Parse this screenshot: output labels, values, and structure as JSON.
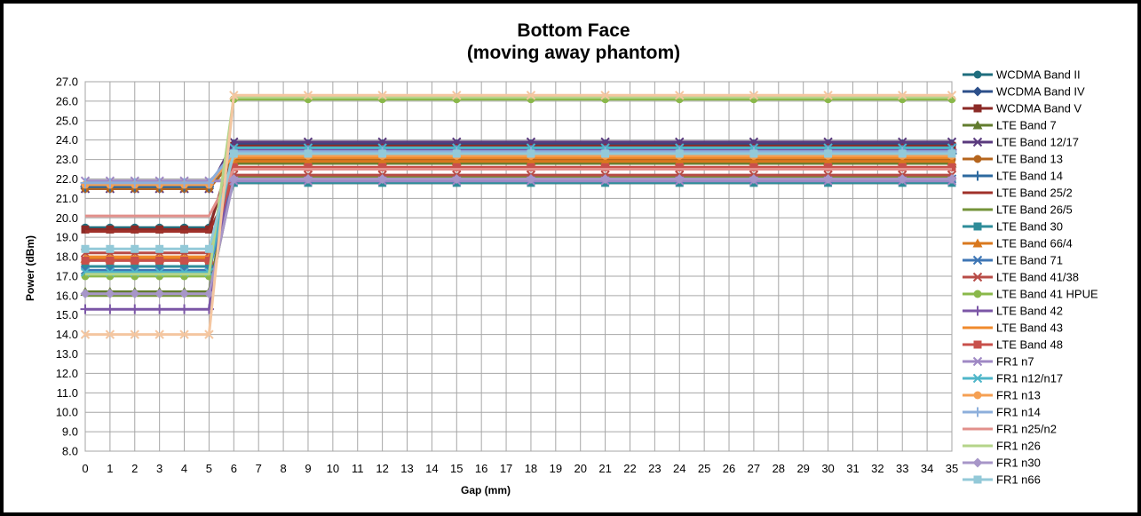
{
  "chart_data": {
    "type": "line",
    "title": "Bottom Face",
    "subtitle": "(moving away phantom)",
    "xlabel": "Gap (mm)",
    "ylabel": "Power (dBm)",
    "ylim": [
      8.0,
      27.0
    ],
    "xlim": [
      0,
      35
    ],
    "x_ticks": [
      "0",
      "1",
      "2",
      "3",
      "4",
      "5",
      "6",
      "7",
      "8",
      "9",
      "10",
      "11",
      "12",
      "13",
      "14",
      "15",
      "16",
      "17",
      "18",
      "19",
      "20",
      "21",
      "22",
      "23",
      "24",
      "25",
      "26",
      "27",
      "28",
      "29",
      "30",
      "31",
      "32",
      "33",
      "34",
      "35"
    ],
    "y_ticks": [
      "8.0",
      "9.0",
      "10.0",
      "11.0",
      "12.0",
      "13.0",
      "14.0",
      "15.0",
      "16.0",
      "17.0",
      "18.0",
      "19.0",
      "20.0",
      "21.0",
      "22.0",
      "23.0",
      "24.0",
      "25.0",
      "26.0",
      "27.0"
    ],
    "grid": true,
    "legend_position": "right",
    "x": [
      0,
      1,
      2,
      3,
      4,
      5,
      6,
      9,
      12,
      15,
      18,
      21,
      24,
      27,
      30,
      33,
      35
    ],
    "series": [
      {
        "name": "WCDMA Band II",
        "color": "#1F6E7E",
        "marker": "circle",
        "near": 19.5,
        "far": 23.4
      },
      {
        "name": "WCDMA Band IV",
        "color": "#2C4F8A",
        "marker": "diamond",
        "near": 21.5,
        "far": 23.8
      },
      {
        "name": "WCDMA Band V",
        "color": "#8B2A26",
        "marker": "square",
        "near": 19.4,
        "far": 23.7
      },
      {
        "name": "LTE Band 7",
        "color": "#627C2E",
        "marker": "triangle",
        "near": 16.2,
        "far": 22.8
      },
      {
        "name": "LTE Band 12/17",
        "color": "#5A3A7E",
        "marker": "x",
        "near": 21.5,
        "far": 23.9
      },
      {
        "name": "LTE Band 13",
        "color": "#B5651D",
        "marker": "circle",
        "near": 21.5,
        "far": 23.0
      },
      {
        "name": "LTE Band 14",
        "color": "#2D6A9F",
        "marker": "plus",
        "near": 21.6,
        "far": 23.3
      },
      {
        "name": "LTE Band 25/2",
        "color": "#A0312A",
        "marker": "none",
        "near": 19.3,
        "far": 21.8
      },
      {
        "name": "LTE Band 26/5",
        "color": "#74933A",
        "marker": "none",
        "near": 16.0,
        "far": 22.1
      },
      {
        "name": "LTE Band 30",
        "color": "#2E8C99",
        "marker": "square",
        "near": 17.5,
        "far": 21.8
      },
      {
        "name": "LTE Band 66/4",
        "color": "#D9781E",
        "marker": "triangle",
        "near": 17.9,
        "far": 22.9
      },
      {
        "name": "LTE Band 71",
        "color": "#3E76B5",
        "marker": "x",
        "near": 17.3,
        "far": 22.0
      },
      {
        "name": "LTE Band 41/38",
        "color": "#B84C47",
        "marker": "x",
        "near": 18.2,
        "far": 22.2
      },
      {
        "name": "LTE Band 41 HPUE",
        "color": "#8AB84A",
        "marker": "circle",
        "near": 17.0,
        "far": 26.1
      },
      {
        "name": "LTE Band 42",
        "color": "#7B56A6",
        "marker": "plus",
        "near": 15.3,
        "far": 23.5
      },
      {
        "name": "LTE Band 43",
        "color": "#F08A2C",
        "marker": "none",
        "near": 18.0,
        "far": 23.1
      },
      {
        "name": "LTE Band 48",
        "color": "#C8504B",
        "marker": "square",
        "near": 17.8,
        "far": 22.6
      },
      {
        "name": "FR1 n7",
        "color": "#9F88C4",
        "marker": "x",
        "near": 21.9,
        "far": 21.9
      },
      {
        "name": "FR1 n12/n17",
        "color": "#4FB6C9",
        "marker": "x",
        "near": 17.2,
        "far": 23.6
      },
      {
        "name": "FR1 n13",
        "color": "#F5A053",
        "marker": "circle",
        "near": 21.7,
        "far": 23.2
      },
      {
        "name": "FR1 n14",
        "color": "#8DAFDB",
        "marker": "plus",
        "near": 21.8,
        "far": 23.4
      },
      {
        "name": "FR1 n25/n2",
        "color": "#E2908B",
        "marker": "none",
        "near": 20.1,
        "far": 22.5
      },
      {
        "name": "FR1 n26",
        "color": "#B5D48A",
        "marker": "none",
        "near": 17.1,
        "far": 26.2
      },
      {
        "name": "FR1 n30",
        "color": "#A796C8",
        "marker": "diamond",
        "near": 16.1,
        "far": 22.0
      },
      {
        "name": "FR1 n66",
        "color": "#93C9D8",
        "marker": "square",
        "near": 18.4,
        "far": 23.3
      },
      {
        "name": "",
        "color": "#F4C6A0",
        "marker": "x",
        "near": 14.0,
        "far": 26.3
      }
    ]
  }
}
